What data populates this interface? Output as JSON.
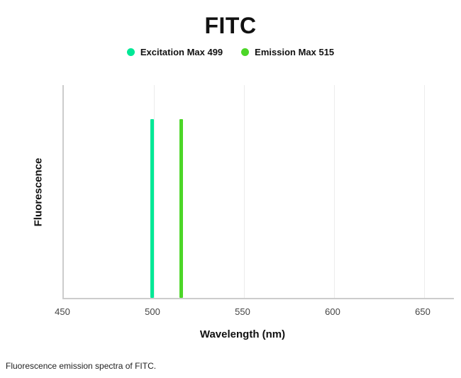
{
  "page": {
    "title": "FITC",
    "caption": "Fluorescence emission spectra of FITC."
  },
  "legend": {
    "items": [
      {
        "label": "Excitation Max 499",
        "color": "#00e896"
      },
      {
        "label": "Emission Max 515",
        "color": "#4cd628"
      }
    ]
  },
  "chart_data": {
    "type": "line",
    "title": "FITC",
    "subtitle": "",
    "xlabel": "Wavelength (nm)",
    "ylabel": "Fluorescence",
    "xlim": [
      450,
      650
    ],
    "x_ticks": [
      450,
      500,
      550,
      600,
      650
    ],
    "grid": true,
    "legend_position": "top",
    "series": [
      {
        "name": "Excitation Max 499",
        "peak_x": 499,
        "peak_height": 0.84,
        "color": "#00e896"
      },
      {
        "name": "Emission Max 515",
        "peak_x": 515,
        "peak_height": 0.84,
        "color": "#4cd628"
      }
    ]
  }
}
